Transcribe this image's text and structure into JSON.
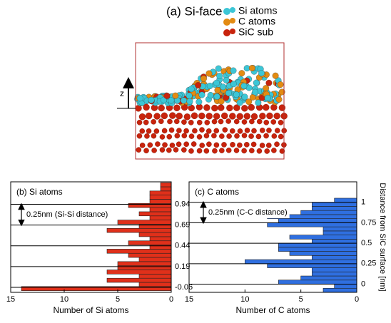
{
  "figure": {
    "title": "(a) Si-face",
    "z_label": "z",
    "legend": [
      {
        "label": "Si atoms",
        "color": "#3cc6d6"
      },
      {
        "label": "C atoms",
        "color": "#e38b12"
      },
      {
        "label": "SiC sub",
        "color": "#c8230c"
      }
    ]
  },
  "chart_data": [
    {
      "type": "hbar-histogram",
      "title": "(b) Si atoms",
      "xlabel": "Number of Si atoms",
      "color": "#e0301a",
      "annotation": "0.25nm (Si-Si distance)",
      "bins": [
        -0.1,
        -0.05,
        0,
        0.05,
        0.1,
        0.15,
        0.2,
        0.25,
        0.3,
        0.35,
        0.4,
        0.45,
        0.5,
        0.55,
        0.6,
        0.65,
        0.7,
        0.75,
        0.8,
        0.85,
        0.9,
        0.95,
        1.0,
        1.05,
        1.1,
        1.15,
        1.2
      ],
      "values": [
        14,
        3,
        6,
        3,
        6,
        5,
        5,
        3,
        4,
        6,
        2,
        4,
        2,
        3,
        6,
        3,
        5,
        2,
        3,
        2,
        4,
        2,
        2,
        2,
        1,
        1
      ],
      "xlim": [
        15,
        0
      ],
      "xticks": [
        15,
        10,
        5,
        0
      ],
      "ylim": [
        -0.12,
        1.21
      ],
      "yticks": [
        -0.06,
        0.19,
        0.44,
        0.69,
        0.94
      ]
    },
    {
      "type": "hbar-histogram",
      "title": "(c) C atoms",
      "xlabel": "Number of C atoms",
      "ylabel": "Distance from SiC surface [nm]",
      "color": "#2f6fe0",
      "annotation": "0.25nm (C-C distance)",
      "bins": [
        -0.1,
        -0.05,
        0,
        0.05,
        0.1,
        0.15,
        0.2,
        0.25,
        0.3,
        0.35,
        0.4,
        0.45,
        0.5,
        0.55,
        0.6,
        0.65,
        0.7,
        0.75,
        0.8,
        0.85,
        0.9,
        0.95,
        1.0,
        1.05
      ],
      "values": [
        3,
        2,
        7,
        5,
        4,
        4,
        8,
        10,
        4,
        6,
        7,
        7,
        4,
        6,
        3,
        3,
        8,
        7,
        8,
        5,
        4,
        4,
        2
      ],
      "xlim": [
        15,
        0
      ],
      "xticks": [
        15,
        10,
        5,
        0
      ],
      "ylim": [
        -0.1,
        1.25
      ],
      "yticks": [
        0,
        0.25,
        0.5,
        0.75,
        1
      ]
    }
  ]
}
